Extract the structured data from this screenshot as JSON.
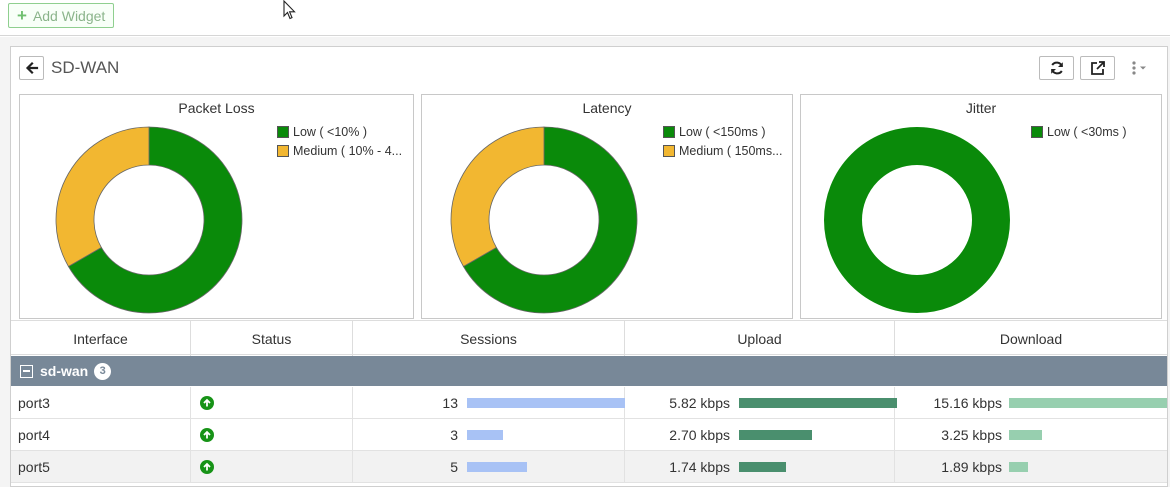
{
  "toolbar": {
    "add_widget_label": "Add Widget"
  },
  "widget": {
    "title": "SD-WAN",
    "icons": {
      "back": "arrow-left-icon",
      "refresh": "refresh-icon",
      "popout": "external-link-icon",
      "more": "vertical-dots-menu-icon"
    }
  },
  "colors": {
    "low": "#0a8a0a",
    "medium": "#f2b731",
    "group_row": "#788898",
    "sessions_bar": "#a8c2f5",
    "upload_bar": "#4a8f6e",
    "download_bar": "#97cfaf"
  },
  "charts": {
    "packet_loss": {
      "title": "Packet Loss",
      "legend": [
        "Low ( <10% )",
        "Medium ( 10% - 4..."
      ]
    },
    "latency": {
      "title": "Latency",
      "legend": [
        "Low ( <150ms )",
        "Medium ( 150ms..."
      ]
    },
    "jitter": {
      "title": "Jitter",
      "legend": [
        "Low ( <30ms )"
      ]
    }
  },
  "chart_data": [
    {
      "type": "pie",
      "title": "Packet Loss",
      "categories": [
        "Low ( <10% )",
        "Medium ( 10% - 4..."
      ],
      "values": [
        2,
        1
      ],
      "colors": [
        "#0a8a0a",
        "#f2b731"
      ],
      "legend": "right"
    },
    {
      "type": "pie",
      "title": "Latency",
      "categories": [
        "Low ( <150ms )",
        "Medium ( 150ms..."
      ],
      "values": [
        2,
        1
      ],
      "colors": [
        "#0a8a0a",
        "#f2b731"
      ],
      "legend": "right"
    },
    {
      "type": "pie",
      "title": "Jitter",
      "categories": [
        "Low ( <30ms )"
      ],
      "values": [
        3
      ],
      "colors": [
        "#0a8a0a"
      ],
      "legend": "right"
    }
  ],
  "table": {
    "columns": [
      "Interface",
      "Status",
      "Sessions",
      "Upload",
      "Download"
    ],
    "group": {
      "name": "sd-wan",
      "count": "3"
    },
    "rows": [
      {
        "interface": "port3",
        "status": "up",
        "sessions": "13",
        "sessions_fraction": 1.0,
        "upload": "5.82 kbps",
        "upload_fraction": 1.0,
        "download": "15.16 kbps",
        "download_fraction": 1.0
      },
      {
        "interface": "port4",
        "status": "up",
        "sessions": "3",
        "sessions_fraction": 0.23,
        "upload": "2.70 kbps",
        "upload_fraction": 0.46,
        "download": "3.25 kbps",
        "download_fraction": 0.21
      },
      {
        "interface": "port5",
        "status": "up",
        "sessions": "5",
        "sessions_fraction": 0.38,
        "upload": "1.74 kbps",
        "upload_fraction": 0.3,
        "download": "1.89 kbps",
        "download_fraction": 0.12
      }
    ]
  }
}
